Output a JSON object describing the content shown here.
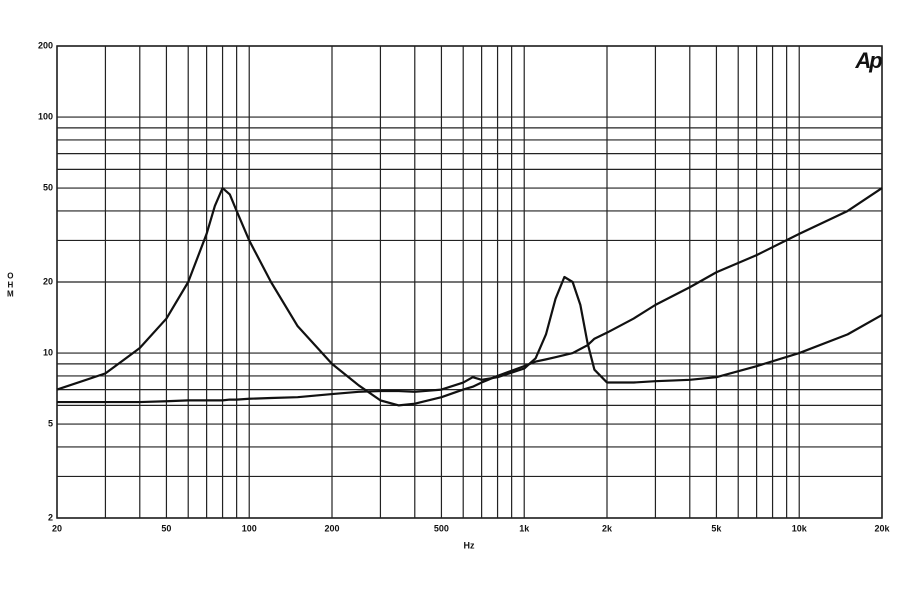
{
  "chart_data": {
    "type": "line",
    "y_label": "OHM",
    "x_label": "Hz",
    "logo": "Ap",
    "xscale": "log",
    "yscale": "log",
    "grid": true,
    "xlim": [
      20,
      20000
    ],
    "ylim": [
      2,
      200
    ],
    "xticks": [
      20,
      50,
      100,
      200,
      500,
      {
        "value": 1000,
        "label": "1k"
      },
      {
        "value": 2000,
        "label": "2k"
      },
      {
        "value": 5000,
        "label": "5k"
      },
      {
        "value": 10000,
        "label": "10k"
      },
      {
        "value": 20000,
        "label": "20k"
      }
    ],
    "yticks": [
      2,
      5,
      10,
      20,
      50,
      100,
      200
    ],
    "xgrid": [
      20,
      30,
      40,
      50,
      60,
      70,
      80,
      90,
      100,
      200,
      300,
      400,
      500,
      600,
      700,
      800,
      900,
      1000,
      2000,
      3000,
      4000,
      5000,
      6000,
      7000,
      8000,
      9000,
      10000,
      20000
    ],
    "ygrid": [
      2,
      3,
      4,
      5,
      6,
      7,
      8,
      9,
      10,
      20,
      30,
      40,
      50,
      60,
      70,
      80,
      90,
      100,
      200
    ],
    "x": [
      20,
      30,
      40,
      50,
      60,
      70,
      75,
      80,
      85,
      90,
      100,
      120,
      150,
      200,
      250,
      300,
      350,
      400,
      500,
      600,
      650,
      700,
      800,
      1000,
      1100,
      1200,
      1300,
      1400,
      1500,
      1600,
      1700,
      1800,
      2000,
      2500,
      3000,
      4000,
      5000,
      7000,
      10000,
      15000,
      20000
    ],
    "series": [
      {
        "color": "#111111",
        "values": [
          7.0,
          8.2,
          10.5,
          14,
          20,
          32,
          42,
          50,
          47,
          40,
          30,
          20,
          13,
          9,
          7.3,
          6.3,
          6.0,
          6.1,
          6.5,
          7.0,
          7.2,
          7.5,
          8.0,
          8.8,
          9.2,
          9.4,
          9.6,
          9.8,
          10,
          10.4,
          10.8,
          11.5,
          12.2,
          14,
          16,
          19,
          22,
          26,
          32,
          40,
          50
        ]
      },
      {
        "color": "#111111",
        "values": [
          6.2,
          6.2,
          6.2,
          6.25,
          6.3,
          6.3,
          6.3,
          6.3,
          6.35,
          6.35,
          6.4,
          6.45,
          6.5,
          6.7,
          6.85,
          6.9,
          6.9,
          6.85,
          7.0,
          7.5,
          7.9,
          7.7,
          7.9,
          8.6,
          9.5,
          12,
          17,
          21,
          20,
          16,
          11,
          8.5,
          7.5,
          7.5,
          7.6,
          7.7,
          7.9,
          8.8,
          10,
          12,
          14.5
        ]
      }
    ]
  }
}
